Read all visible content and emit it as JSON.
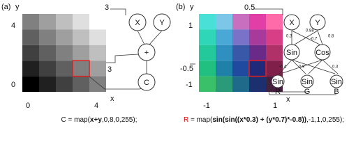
{
  "panels": [
    {
      "label": "(a)",
      "y_axis": "y",
      "x_axis": "x",
      "y_ticks": [
        "4",
        "0"
      ],
      "x_ticks": [
        "0",
        "4"
      ],
      "annotations": [
        "3",
        "3"
      ],
      "nodes": [
        "X",
        "Y",
        "+",
        "C"
      ],
      "caption": {
        "lhs": "C",
        "pre": " = map(",
        "bold": "x+y",
        "post": ",0,8,0,255);"
      }
    },
    {
      "label": "(b)",
      "y_axis": "y",
      "x_axis": "x",
      "y_ticks": [
        "1",
        "-1"
      ],
      "x_ticks": [
        "-1",
        "1"
      ],
      "annotations": [
        "0.5",
        "-0.5"
      ],
      "nodes": [
        "X",
        "Y",
        "Sin",
        "Cos",
        "Sin",
        "Sin",
        "Sin"
      ],
      "outputs": [
        "R",
        "G",
        "B"
      ],
      "weights": [
        "0.3",
        "0.88",
        "-0.7",
        "0.8",
        "-0.4",
        "0.9",
        "0.3"
      ],
      "caption": {
        "lhs": "R",
        "pre": " = map(",
        "bold": "sin(sin((x*0.3) + (y*0.7)*-0.8))",
        "post": ",-1,1,0,255);"
      }
    }
  ]
}
